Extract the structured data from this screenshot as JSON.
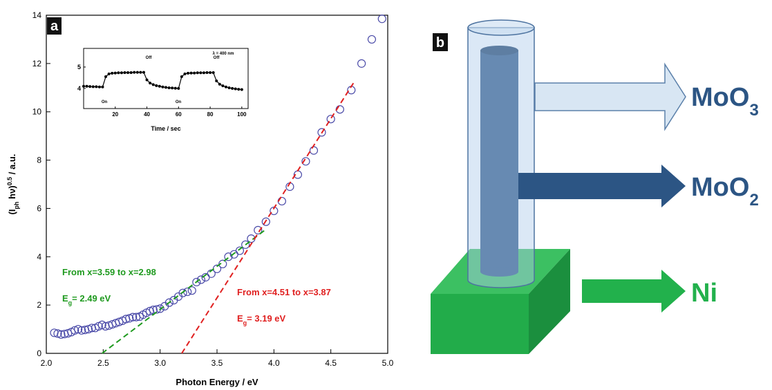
{
  "chart_data": {
    "type": "scatter",
    "panel_label": "a",
    "x_label": "Photon Energy  /  eV",
    "y_label_parts": [
      "(I",
      "ph",
      " hν)",
      "0.5",
      "  /  a.u."
    ],
    "xlim": [
      2,
      5
    ],
    "xticks": [
      {
        "value": 2,
        "label": "2.0"
      },
      {
        "value": 2.5,
        "label": "2.5"
      },
      {
        "value": 3,
        "label": "3.0"
      },
      {
        "value": 3.5,
        "label": "3.5"
      },
      {
        "value": 4,
        "label": "4.0"
      },
      {
        "value": 4.5,
        "label": "4.5"
      },
      {
        "value": 5,
        "label": "5.0"
      }
    ],
    "ylim": [
      0,
      14
    ],
    "yticks": [
      0,
      2,
      4,
      6,
      8,
      10,
      12,
      14
    ],
    "series": [
      {
        "color": "#4a4aa8",
        "x": [
          2.07,
          2.1,
          2.13,
          2.16,
          2.19,
          2.22,
          2.25,
          2.28,
          2.31,
          2.34,
          2.37,
          2.4,
          2.43,
          2.46,
          2.49,
          2.52,
          2.55,
          2.58,
          2.61,
          2.64,
          2.67,
          2.7,
          2.73,
          2.76,
          2.79,
          2.82,
          2.85,
          2.88,
          2.91,
          2.94,
          2.97,
          3.0,
          3.04,
          3.08,
          3.12,
          3.16,
          3.2,
          3.24,
          3.28,
          3.32,
          3.36,
          3.4,
          3.45,
          3.5,
          3.55,
          3.6,
          3.65,
          3.7,
          3.75,
          3.8,
          3.86,
          3.93,
          4.0,
          4.07,
          4.14,
          4.21,
          4.28,
          4.35,
          4.42,
          4.5,
          4.58,
          4.68,
          4.77,
          4.86,
          4.95
        ],
        "values": [
          0.85,
          0.82,
          0.78,
          0.8,
          0.83,
          0.88,
          0.95,
          1.0,
          0.95,
          0.97,
          1.0,
          1.05,
          1.05,
          1.12,
          1.18,
          1.12,
          1.15,
          1.2,
          1.25,
          1.3,
          1.35,
          1.42,
          1.45,
          1.5,
          1.5,
          1.52,
          1.6,
          1.68,
          1.75,
          1.8,
          1.82,
          1.85,
          1.95,
          2.1,
          2.2,
          2.35,
          2.5,
          2.55,
          2.6,
          2.95,
          3.05,
          3.15,
          3.3,
          3.5,
          3.7,
          4.0,
          4.1,
          4.25,
          4.5,
          4.75,
          5.1,
          5.45,
          5.9,
          6.3,
          6.9,
          7.4,
          7.95,
          8.4,
          9.15,
          9.7,
          10.1,
          10.9,
          12.0,
          13.0,
          13.85
        ]
      }
    ],
    "fits": [
      {
        "color": "#1f9a1f",
        "x": [
          2.49,
          3.92
        ],
        "values": [
          0,
          5.1
        ],
        "label": "From x=3.59 to x=2.98",
        "eg": [
          "E",
          "g",
          "= 2.49 eV"
        ]
      },
      {
        "color": "#e02020",
        "x": [
          3.19,
          4.7
        ],
        "values": [
          0,
          11.2
        ],
        "label": "From x=4.51 to x=3.87",
        "eg": [
          "E",
          "g",
          "= 3.19 eV"
        ]
      }
    ],
    "inset": {
      "type": "line",
      "x_label": "Time  /  sec",
      "color": "#000000",
      "xlim": [
        0,
        104
      ],
      "xticks": [
        20,
        40,
        60,
        80,
        100
      ],
      "ylim": [
        3.06,
        5.87
      ],
      "yticks": [
        4,
        5
      ],
      "x": [
        0,
        2,
        4,
        6,
        8,
        10,
        12,
        14,
        16,
        18,
        20,
        22,
        24,
        26,
        28,
        30,
        32,
        34,
        36,
        38,
        40,
        42,
        44,
        46,
        48,
        50,
        52,
        54,
        56,
        58,
        60,
        62,
        64,
        66,
        68,
        70,
        72,
        74,
        76,
        78,
        80,
        82,
        84,
        86,
        88,
        90,
        92,
        94,
        96,
        98,
        100
      ],
      "values": [
        4.1,
        4.1,
        4.09,
        4.08,
        4.08,
        4.07,
        4.07,
        4.55,
        4.68,
        4.71,
        4.72,
        4.73,
        4.73,
        4.74,
        4.74,
        4.74,
        4.75,
        4.75,
        4.75,
        4.75,
        4.4,
        4.25,
        4.18,
        4.13,
        4.1,
        4.07,
        4.05,
        4.03,
        4.02,
        4.01,
        4.0,
        4.55,
        4.68,
        4.71,
        4.72,
        4.72,
        4.73,
        4.73,
        4.73,
        4.74,
        4.74,
        4.74,
        4.35,
        4.2,
        4.12,
        4.07,
        4.03,
        4.0,
        3.98,
        3.96,
        3.95
      ],
      "annotations": [
        "On",
        "Off",
        "On",
        "Off",
        "λ = 400 nm"
      ]
    }
  },
  "diagram": {
    "panel_label": "b",
    "labels": [
      {
        "text": "MoO",
        "subscript": "3"
      },
      {
        "text": "MoO",
        "subscript": "2"
      },
      {
        "text": "Ni"
      }
    ]
  }
}
